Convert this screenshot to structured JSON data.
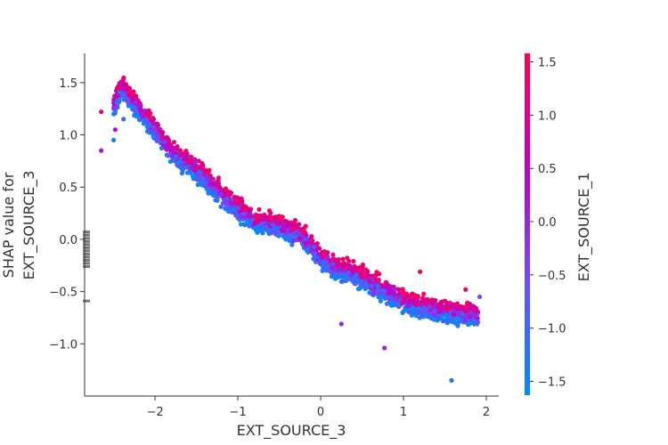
{
  "chart_data": {
    "type": "scatter",
    "title": "",
    "xlabel": "EXT_SOURCE_3",
    "ylabel_lines": [
      "SHAP value for",
      "EXT_SOURCE_3"
    ],
    "colorbar_label": "EXT_SOURCE_1",
    "xlim": [
      -2.85,
      2.15
    ],
    "ylim": [
      -1.5,
      1.78
    ],
    "xticks": [
      -2,
      -1,
      0,
      1,
      2
    ],
    "xtick_labels": [
      "−2",
      "−1",
      "0",
      "1",
      "2"
    ],
    "yticks": [
      -1.0,
      -0.5,
      0.0,
      0.5,
      1.0,
      1.5
    ],
    "ytick_labels": [
      "−1.0",
      "−0.5",
      "0.0",
      "0.5",
      "1.0",
      "1.5"
    ],
    "color_range": [
      -1.63,
      1.58
    ],
    "cticks": [
      -1.5,
      -1.0,
      -0.5,
      0.0,
      0.5,
      1.0,
      1.5
    ],
    "ctick_labels": [
      "−1.5",
      "−1.0",
      "−0.5",
      "0.0",
      "0.5",
      "1.0",
      "1.5"
    ],
    "colormap": [
      "#008bfb",
      "#6c4dff",
      "#bf00c4",
      "#ff0052"
    ],
    "missing_value_color": "#777777",
    "grid": false,
    "legend": "colorbar-right",
    "trend": {
      "x": [
        -2.65,
        -2.4,
        -2.2,
        -2.0,
        -1.8,
        -1.6,
        -1.4,
        -1.2,
        -1.0,
        -0.8,
        -0.6,
        -0.4,
        -0.2,
        0.0,
        0.2,
        0.4,
        0.6,
        0.8,
        1.0,
        1.2,
        1.4,
        1.6,
        1.8,
        1.9
      ],
      "y": [
        1.05,
        1.45,
        1.25,
        1.05,
        0.82,
        0.72,
        0.6,
        0.42,
        0.3,
        0.17,
        0.15,
        0.08,
        0.02,
        -0.18,
        -0.28,
        -0.33,
        -0.42,
        -0.5,
        -0.6,
        -0.64,
        -0.68,
        -0.7,
        -0.72,
        -0.74
      ]
    },
    "spread": 0.09,
    "n_points": 2400,
    "outliers": [
      {
        "x": 0.25,
        "y": -0.81,
        "c": -0.2
      },
      {
        "x": 0.77,
        "y": -1.04,
        "c": 0.0
      },
      {
        "x": 1.58,
        "y": -1.35,
        "c": -1.3
      },
      {
        "x": 1.2,
        "y": -0.31,
        "c": 1.4
      },
      {
        "x": 1.75,
        "y": -0.48,
        "c": 1.2
      },
      {
        "x": 1.92,
        "y": -0.55,
        "c": -0.6
      },
      {
        "x": -2.65,
        "y": 0.85,
        "c": 0.2
      },
      {
        "x": -2.65,
        "y": 1.22,
        "c": 1.2
      },
      {
        "x": -2.5,
        "y": 1.2,
        "c": -1.2
      },
      {
        "x": -2.48,
        "y": 1.05,
        "c": 0.3
      },
      {
        "x": -2.5,
        "y": 0.95,
        "c": -1.4
      },
      {
        "x": -2.38,
        "y": 1.15,
        "c": -1.0
      }
    ],
    "missing_points_y": [
      0.07,
      0.04,
      0.01,
      -0.02,
      -0.05,
      -0.08,
      -0.11,
      -0.14,
      -0.17,
      -0.2,
      -0.23,
      -0.26,
      -0.59
    ]
  }
}
